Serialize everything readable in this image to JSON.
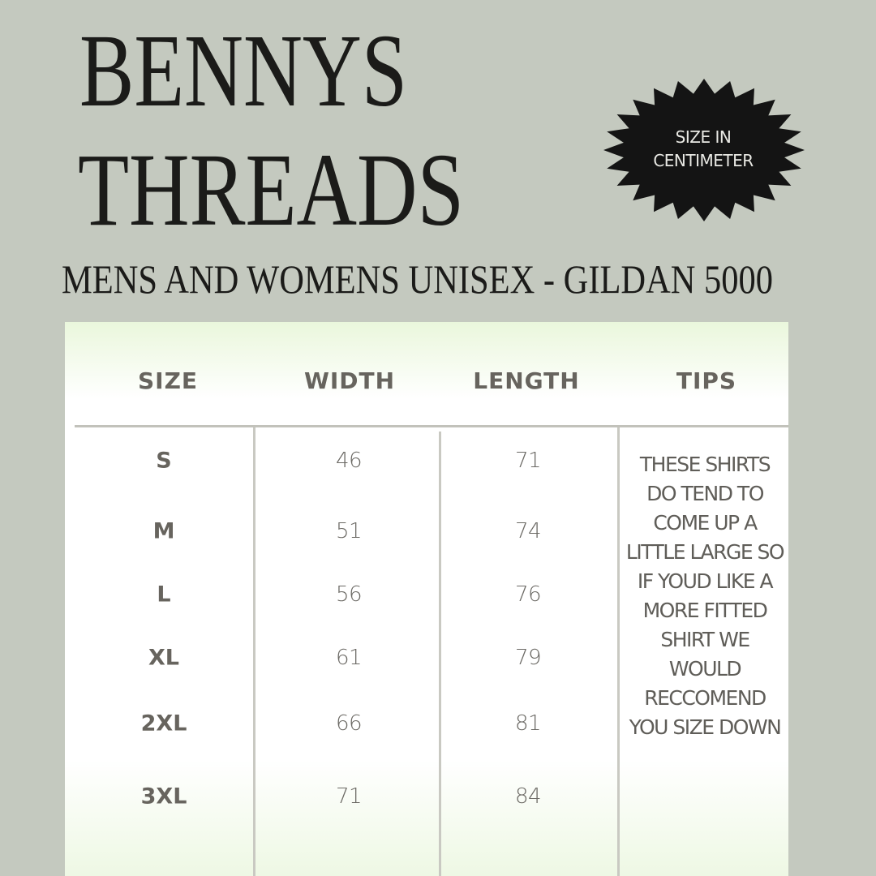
{
  "brand": {
    "line1": "BENNYS",
    "line2": "THREADS"
  },
  "subtitle": "MENS AND WOMENS UNISEX - GILDAN 5000",
  "badge": {
    "line1": "SIZE IN",
    "line2": "CENTIMETER",
    "color": "#141414"
  },
  "colors": {
    "background": "#c4c9bf",
    "text_dark": "#1b1b19",
    "table_text": "#67645e"
  },
  "table": {
    "headers": [
      "SIZE",
      "WIDTH",
      "LENGTH",
      "TIPS"
    ],
    "rows": [
      {
        "size": "S",
        "width": "46",
        "length": "71"
      },
      {
        "size": "M",
        "width": "51",
        "length": "74"
      },
      {
        "size": "L",
        "width": "56",
        "length": "76"
      },
      {
        "size": "XL",
        "width": "61",
        "length": "79"
      },
      {
        "size": "2XL",
        "width": "66",
        "length": "81"
      },
      {
        "size": "3XL",
        "width": "71",
        "length": "84"
      }
    ],
    "tips": [
      "THESE SHIRTS",
      "DO TEND TO",
      "COME UP A",
      "LITTLE LARGE SO",
      "IF YOUD LIKE A",
      "MORE FITTED",
      "SHIRT WE",
      "WOULD",
      "RECCOMEND",
      "YOU SIZE DOWN"
    ]
  }
}
